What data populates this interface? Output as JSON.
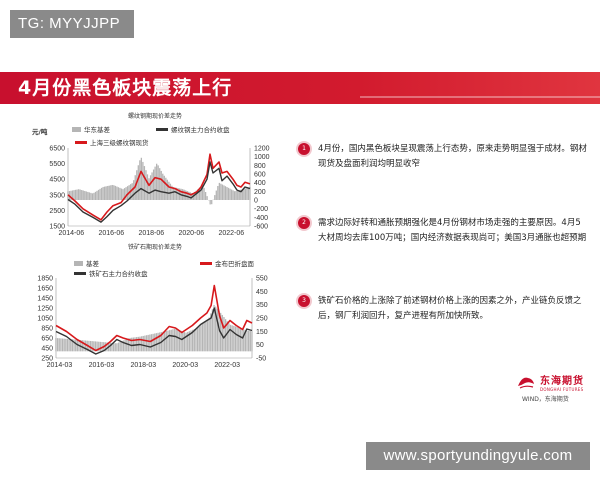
{
  "badge": "TG: MYYJJPP",
  "slide_title": "4月份黑色板块震荡上行",
  "watermark": "www.sportyundingyule.com",
  "source": "WIND，东海期货",
  "logo": {
    "cn": "东海期货",
    "en": "DONGHAI FUTURES"
  },
  "colors": {
    "brand_red": "#c8102e",
    "series_red": "#d7191c",
    "series_dark": "#333333",
    "series_gray": "#b5b5b5"
  },
  "bullets": [
    {
      "num": "1",
      "text": "4月份，国内黑色板块呈现震荡上行态势，原来走势明显强于成材。钢材现货及盘面利润均明显收窄"
    },
    {
      "num": "2",
      "text": "需求边际好转和通胀预期强化是4月份钢材市场走强的主要原因。4月5大材周均去库100万吨；国内经济数据表现尚可；美国3月通胀也超预期"
    },
    {
      "num": "3",
      "text": "铁矿石价格的上涨除了前述钢材价格上涨的因素之外，产业链负反馈之后，钢厂利润回升，复产进程有所加快所致。"
    }
  ],
  "chart_data": [
    {
      "type": "line",
      "title": "螺纹钢期现价差走势",
      "unit": "元/吨",
      "x_ticks": [
        "2014-06",
        "2016-06",
        "2018-06",
        "2020-06",
        "2022-06"
      ],
      "y_left_ticks": [
        6500,
        5500,
        4500,
        3500,
        2500,
        1500
      ],
      "y_right_ticks": [
        1200,
        1000,
        800,
        600,
        400,
        200,
        0,
        -200,
        -400,
        -600
      ],
      "ylim_left": [
        1500,
        6500
      ],
      "ylim_right": [
        -600,
        1200
      ],
      "legend": [
        {
          "name": "华东基差",
          "axis": "right",
          "color": "#b5b5b5"
        },
        {
          "name": "螺纹钢主力合约收盘",
          "axis": "left",
          "color": "#333333"
        },
        {
          "name": "上海三级螺纹钢现货",
          "axis": "left",
          "color": "#d7191c"
        }
      ],
      "x_start": 2014.25,
      "x_end": 2023.35,
      "series": [
        {
          "name": "上海三级螺纹钢现货",
          "x": [
            2014.25,
            2014.6,
            2015.0,
            2015.5,
            2015.9,
            2016.2,
            2016.5,
            2016.9,
            2017.2,
            2017.6,
            2017.9,
            2018.3,
            2018.6,
            2018.9,
            2019.3,
            2019.6,
            2019.9,
            2020.2,
            2020.4,
            2020.7,
            2020.9,
            2021.2,
            2021.35,
            2021.5,
            2021.8,
            2021.95,
            2022.2,
            2022.5,
            2022.7,
            2022.9,
            2023.1,
            2023.35
          ],
          "values": [
            3500,
            3100,
            2600,
            2200,
            1900,
            2400,
            2800,
            3000,
            3500,
            4000,
            5000,
            4100,
            4600,
            4500,
            4000,
            3900,
            3700,
            3600,
            3500,
            3700,
            4000,
            4800,
            6100,
            5200,
            5600,
            4900,
            5000,
            4500,
            4100,
            4000,
            4300,
            4200
          ]
        },
        {
          "name": "螺纹钢主力合约收盘",
          "x": [
            2014.25,
            2014.6,
            2015.0,
            2015.5,
            2015.9,
            2016.2,
            2016.5,
            2016.9,
            2017.2,
            2017.6,
            2017.9,
            2018.3,
            2018.6,
            2018.9,
            2019.3,
            2019.6,
            2019.9,
            2020.2,
            2020.4,
            2020.7,
            2020.9,
            2021.2,
            2021.35,
            2021.5,
            2021.8,
            2021.95,
            2022.2,
            2022.5,
            2022.7,
            2022.9,
            2023.1,
            2023.35
          ],
          "values": [
            3200,
            2900,
            2400,
            2050,
            1750,
            2100,
            2500,
            2800,
            3100,
            3600,
            3900,
            3600,
            3800,
            3700,
            3600,
            3700,
            3500,
            3400,
            3300,
            3600,
            3800,
            4500,
            5600,
            4900,
            5200,
            4400,
            4700,
            4200,
            3800,
            3700,
            4000,
            3900
          ]
        },
        {
          "name": "华东基差",
          "x": [
            2014.25,
            2014.8,
            2015.5,
            2016.0,
            2016.5,
            2017.0,
            2017.5,
            2017.9,
            2018.3,
            2018.7,
            2019.0,
            2019.5,
            2020.0,
            2020.5,
            2021.0,
            2021.4,
            2021.8,
            2022.2,
            2022.6,
            2023.0,
            2023.35
          ],
          "values": [
            200,
            250,
            150,
            300,
            350,
            250,
            400,
            1000,
            500,
            850,
            600,
            300,
            250,
            150,
            350,
            -150,
            400,
            300,
            200,
            250,
            300
          ]
        }
      ]
    },
    {
      "type": "line",
      "title": "铁矿石期现价差走势",
      "x_ticks": [
        "2014-03",
        "2016-03",
        "2018-03",
        "2020-03",
        "2022-03"
      ],
      "y_left_ticks": [
        1850,
        1650,
        1450,
        1250,
        1050,
        850,
        650,
        450,
        250
      ],
      "y_right_ticks": [
        550,
        450,
        350,
        250,
        150,
        50,
        -50
      ],
      "ylim_left": [
        250,
        1850
      ],
      "ylim_right": [
        -50,
        550
      ],
      "legend": [
        {
          "name": "基差",
          "axis": "right",
          "color": "#b5b5b5"
        },
        {
          "name": "金布巴折盘面",
          "axis": "left",
          "color": "#d7191c"
        },
        {
          "name": "铁矿石主力合约收盘",
          "axis": "left",
          "color": "#333333"
        }
      ],
      "x_start": 2014.0,
      "x_end": 2023.35,
      "series": [
        {
          "name": "金布巴折盘面",
          "x": [
            2014.0,
            2014.5,
            2015.0,
            2015.5,
            2015.9,
            2016.3,
            2016.6,
            2016.9,
            2017.2,
            2017.6,
            2018.0,
            2018.5,
            2019.0,
            2019.4,
            2019.7,
            2020.0,
            2020.5,
            2020.9,
            2021.2,
            2021.4,
            2021.55,
            2021.8,
            2022.0,
            2022.3,
            2022.6,
            2022.9,
            2023.1,
            2023.35
          ],
          "values": [
            900,
            780,
            620,
            500,
            400,
            480,
            580,
            700,
            650,
            600,
            620,
            580,
            700,
            880,
            850,
            760,
            900,
            1050,
            1150,
            1300,
            1700,
            1100,
            850,
            1000,
            900,
            820,
            1000,
            950
          ]
        },
        {
          "name": "铁矿石主力合约收盘",
          "x": [
            2014.0,
            2014.5,
            2015.0,
            2015.5,
            2015.9,
            2016.3,
            2016.6,
            2016.9,
            2017.2,
            2017.6,
            2018.0,
            2018.5,
            2019.0,
            2019.4,
            2019.7,
            2020.0,
            2020.5,
            2020.9,
            2021.2,
            2021.4,
            2021.55,
            2021.8,
            2022.0,
            2022.3,
            2022.6,
            2022.9,
            2023.1,
            2023.35
          ],
          "values": [
            780,
            680,
            520,
            420,
            330,
            400,
            500,
            620,
            560,
            500,
            520,
            470,
            560,
            700,
            680,
            620,
            760,
            920,
            1000,
            1050,
            1250,
            800,
            650,
            820,
            720,
            650,
            830,
            800
          ]
        },
        {
          "name": "基差",
          "x": [
            2014.0,
            2014.8,
            2015.5,
            2016.2,
            2016.9,
            2017.5,
            2018.0,
            2018.6,
            2019.2,
            2019.7,
            2020.2,
            2020.8,
            2021.3,
            2021.55,
            2021.9,
            2022.3,
            2022.7,
            2023.0,
            2023.35
          ],
          "values": [
            100,
            90,
            80,
            70,
            60,
            100,
            110,
            130,
            150,
            170,
            140,
            180,
            250,
            350,
            280,
            200,
            180,
            160,
            150
          ]
        }
      ]
    }
  ]
}
